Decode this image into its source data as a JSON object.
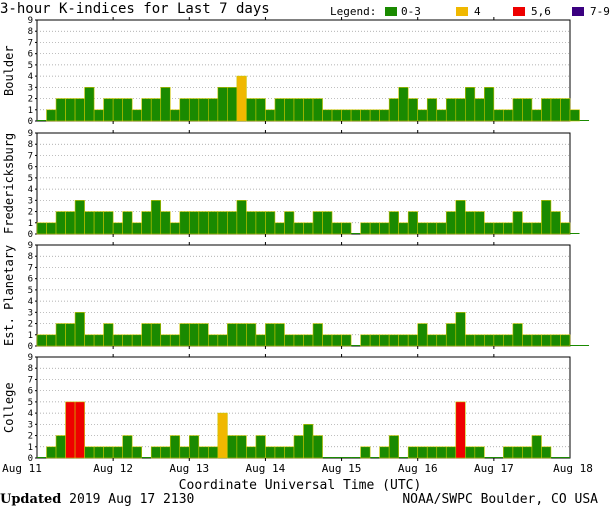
{
  "title": "3-hour K-indices for Last 7 days",
  "legend": {
    "label": "Legend:",
    "items": [
      {
        "text": "0-3",
        "color": "#1a8a00"
      },
      {
        "text": "4",
        "color": "#f0b800"
      },
      {
        "text": "5,6",
        "color": "#ee0000"
      },
      {
        "text": "7-9",
        "color": "#3b0080"
      }
    ]
  },
  "x_axis": {
    "title": "Coordinate Universal Time (UTC)",
    "labels": [
      "Aug 11",
      "Aug 12",
      "Aug 13",
      "Aug 14",
      "Aug 15",
      "Aug 16",
      "Aug 17",
      "Aug 18"
    ]
  },
  "footer": {
    "updated_label": "Updated",
    "updated_value": "2019 Aug 17 2130",
    "credit": "NOAA/SWPC Boulder, CO USA"
  },
  "chart_data": [
    {
      "type": "bar",
      "station": "Boulder",
      "ylim": [
        0,
        9
      ],
      "ytick_labels": [
        "0",
        "1",
        "2",
        "3",
        "4",
        "5",
        "6",
        "7",
        "8",
        "9"
      ],
      "values": [
        0,
        1,
        2,
        2,
        2,
        3,
        1,
        2,
        2,
        2,
        1,
        2,
        2,
        3,
        1,
        2,
        2,
        2,
        2,
        3,
        3,
        4,
        2,
        2,
        1,
        2,
        2,
        2,
        2,
        2,
        1,
        1,
        1,
        1,
        1,
        1,
        1,
        2,
        3,
        2,
        1,
        2,
        1,
        2,
        2,
        3,
        2,
        3,
        1,
        1,
        2,
        2,
        1,
        2,
        2,
        2,
        1,
        0
      ]
    },
    {
      "type": "bar",
      "station": "Fredericksburg",
      "ylim": [
        0,
        9
      ],
      "ytick_labels": [
        "0",
        "1",
        "2",
        "3",
        "4",
        "5",
        "6",
        "7",
        "8",
        "9"
      ],
      "values": [
        1,
        1,
        2,
        2,
        3,
        2,
        2,
        2,
        1,
        2,
        1,
        2,
        3,
        2,
        1,
        2,
        2,
        2,
        2,
        2,
        2,
        3,
        2,
        2,
        2,
        1,
        2,
        1,
        1,
        2,
        2,
        1,
        1,
        0,
        1,
        1,
        1,
        2,
        1,
        2,
        1,
        1,
        1,
        2,
        3,
        2,
        2,
        1,
        1,
        1,
        2,
        1,
        1,
        3,
        2,
        1,
        0
      ]
    },
    {
      "type": "bar",
      "station": "Est. Planetary",
      "ylim": [
        0,
        9
      ],
      "ytick_labels": [
        "0",
        "1",
        "2",
        "3",
        "4",
        "5",
        "6",
        "7",
        "8",
        "9"
      ],
      "values": [
        1,
        1,
        2,
        2,
        3,
        1,
        1,
        2,
        1,
        1,
        1,
        2,
        2,
        1,
        1,
        2,
        2,
        2,
        1,
        1,
        2,
        2,
        2,
        1,
        2,
        2,
        1,
        1,
        1,
        2,
        1,
        1,
        1,
        0,
        1,
        1,
        1,
        1,
        1,
        1,
        2,
        1,
        1,
        2,
        3,
        1,
        1,
        1,
        1,
        1,
        2,
        1,
        1,
        1,
        1,
        1,
        0,
        0
      ]
    },
    {
      "type": "bar",
      "station": "College",
      "ylim": [
        0,
        9
      ],
      "ytick_labels": [
        "0",
        "1",
        "2",
        "3",
        "4",
        "5",
        "6",
        "7",
        "8",
        "9"
      ],
      "values": [
        0,
        1,
        2,
        5,
        5,
        1,
        1,
        1,
        1,
        2,
        1,
        0,
        1,
        1,
        2,
        1,
        2,
        1,
        1,
        4,
        2,
        2,
        1,
        2,
        1,
        1,
        1,
        2,
        3,
        2,
        0,
        0,
        0,
        0,
        1,
        0,
        1,
        2,
        0,
        1,
        1,
        1,
        1,
        1,
        5,
        1,
        1,
        0,
        0,
        1,
        1,
        1,
        2,
        1,
        0,
        0
      ]
    }
  ]
}
